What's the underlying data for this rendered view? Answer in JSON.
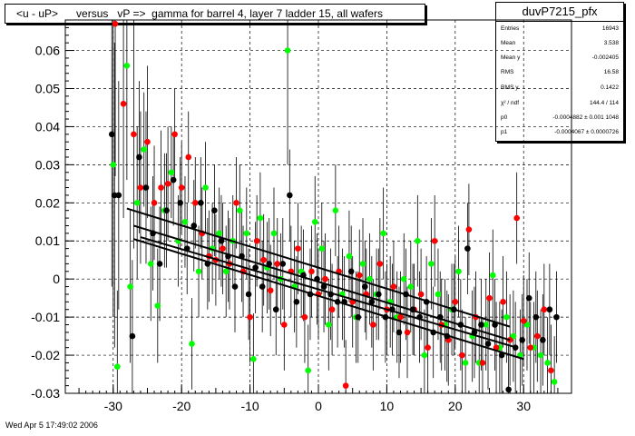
{
  "title": "<u - uP>      versus   vP =>  gamma for barrel 4, layer 7 ladder 15, all wafers",
  "timestamp": "Wed Apr  5 17:49:02 2006",
  "stats": {
    "name": "duvP7215_pfx",
    "rows": [
      {
        "label": "Entries",
        "value": "16943"
      },
      {
        "label": "Mean",
        "value": "3.538"
      },
      {
        "label": "Mean y",
        "value": "-0.002405"
      },
      {
        "label": "RMS",
        "value": "16.58"
      },
      {
        "label": "RMS y",
        "value": "0.1422"
      },
      {
        "label": "χ² / ndf",
        "value": "144.4 / 114"
      },
      {
        "label": "p0",
        "value": "-0.0004882  ± 0.001 1048"
      },
      {
        "label": "p1",
        "value": "-0.0004067  ± 0.0000726"
      }
    ]
  },
  "chart_data": {
    "type": "scatter",
    "xlim": [
      -37,
      37
    ],
    "ylim": [
      -0.03,
      0.068
    ],
    "xticks": [
      -30,
      -20,
      -10,
      0,
      10,
      20,
      30
    ],
    "yticks": [
      -0.03,
      -0.02,
      -0.01,
      0,
      0.01,
      0.02,
      0.03,
      0.04,
      0.05,
      0.06
    ],
    "ytick_labels": [
      "-0.03",
      "-0.02",
      "-0.01",
      "0",
      "0.01",
      "0.02",
      "0.03",
      "0.04",
      "0.05",
      "0.06"
    ],
    "xtick_labels": [
      "-30",
      "-20",
      "-10",
      "0",
      "10",
      "20",
      "30"
    ],
    "grid": true,
    "colors": {
      "black": "#000000",
      "red": "#ff0000",
      "green": "#00ff00",
      "fit": "#000000"
    },
    "series": [
      {
        "color": "green",
        "points": [
          [
            -30,
            0.03,
            0.04
          ],
          [
            -29.4,
            -0.023,
            0.02
          ],
          [
            -28,
            0.056,
            0.03
          ],
          [
            -27.5,
            -0.002,
            0.02
          ],
          [
            -26.5,
            0.02,
            0.02
          ],
          [
            -25.5,
            0.034,
            0.015
          ],
          [
            -24.5,
            0.004,
            0.015
          ],
          [
            -23.5,
            -0.007,
            0.015
          ],
          [
            -22.5,
            0.018,
            0.015
          ],
          [
            -21.5,
            0.028,
            0.012
          ],
          [
            -20.5,
            0.01,
            0.012
          ],
          [
            -19.5,
            0.015,
            0.012
          ],
          [
            -18.5,
            -0.017,
            0.012
          ],
          [
            -17.5,
            0.002,
            0.012
          ],
          [
            -16.5,
            0.024,
            0.012
          ],
          [
            -15.5,
            0.008,
            0.012
          ],
          [
            -14.5,
            0.012,
            0.012
          ],
          [
            -13.5,
            0.002,
            0.012
          ],
          [
            -12.5,
            0.01,
            0.012
          ],
          [
            -11.5,
            0.018,
            0.012
          ],
          [
            -10.5,
            0.012,
            0.012
          ],
          [
            -9.5,
            -0.021,
            0.012
          ],
          [
            -8.5,
            0.016,
            0.012
          ],
          [
            -7.5,
            0.003,
            0.012
          ],
          [
            -6.5,
            0.012,
            0.012
          ],
          [
            -5.5,
            0.0,
            0.012
          ],
          [
            -4.5,
            0.06,
            0.03
          ],
          [
            -3.5,
            -0.002,
            0.012
          ],
          [
            -2.5,
            0.002,
            0.012
          ],
          [
            -1.5,
            -0.024,
            0.012
          ],
          [
            -0.5,
            0.015,
            0.012
          ],
          [
            0.5,
            0.008,
            0.012
          ],
          [
            1.5,
            -0.012,
            0.012
          ],
          [
            2.5,
            0.018,
            0.012
          ],
          [
            3.5,
            -0.004,
            0.012
          ],
          [
            4.5,
            0.006,
            0.012
          ],
          [
            5.5,
            -0.01,
            0.012
          ],
          [
            6.5,
            0.004,
            0.012
          ],
          [
            7.5,
            0.0,
            0.012
          ],
          [
            8.5,
            -0.004,
            0.012
          ],
          [
            9.5,
            0.012,
            0.012
          ],
          [
            10.5,
            -0.006,
            0.012
          ],
          [
            11.5,
            -0.01,
            0.012
          ],
          [
            12.5,
            0.0,
            0.012
          ],
          [
            13.5,
            -0.002,
            0.012
          ],
          [
            14.5,
            0.01,
            0.012
          ],
          [
            15.5,
            -0.02,
            0.012
          ],
          [
            16.5,
            0.004,
            0.012
          ],
          [
            17.5,
            -0.004,
            0.012
          ],
          [
            18.5,
            -0.012,
            0.012
          ],
          [
            19.5,
            -0.008,
            0.012
          ],
          [
            20.5,
            0.002,
            0.012
          ],
          [
            21.5,
            -0.022,
            0.012
          ],
          [
            22.5,
            -0.015,
            0.012
          ],
          [
            23.5,
            -0.022,
            0.012
          ],
          [
            24.5,
            -0.012,
            0.012
          ],
          [
            25.5,
            0.001,
            0.012
          ],
          [
            26.5,
            -0.018,
            0.012
          ],
          [
            27.5,
            -0.01,
            0.012
          ],
          [
            28.5,
            -0.015,
            0.012
          ],
          [
            29.5,
            -0.02,
            0.012
          ],
          [
            30.5,
            -0.012,
            0.012
          ],
          [
            31.5,
            -0.018,
            0.012
          ],
          [
            32.5,
            -0.02,
            0.012
          ],
          [
            33.5,
            -0.022,
            0.012
          ],
          [
            34.5,
            -0.027,
            0.012
          ]
        ]
      },
      {
        "color": "red",
        "points": [
          [
            -29.7,
            0.067,
            0.04
          ],
          [
            -28.5,
            0.046,
            0.03
          ],
          [
            -27,
            0.038,
            0.03
          ],
          [
            -26,
            0.024,
            0.02
          ],
          [
            -25,
            0.036,
            0.02
          ],
          [
            -24,
            0.02,
            0.015
          ],
          [
            -23,
            0.024,
            0.015
          ],
          [
            -22,
            0.025,
            0.015
          ],
          [
            -21,
            0.038,
            0.012
          ],
          [
            -20,
            0.024,
            0.012
          ],
          [
            -19,
            0.032,
            0.012
          ],
          [
            -18,
            0.02,
            0.012
          ],
          [
            -17,
            0.012,
            0.012
          ],
          [
            -16,
            0.006,
            0.012
          ],
          [
            -15,
            0.005,
            0.012
          ],
          [
            -14,
            0.008,
            0.012
          ],
          [
            -13,
            0.004,
            0.012
          ],
          [
            -12,
            0.02,
            0.012
          ],
          [
            -11,
            0.002,
            0.012
          ],
          [
            -10,
            -0.01,
            0.012
          ],
          [
            -9,
            0.01,
            0.012
          ],
          [
            -8,
            0.005,
            0.012
          ],
          [
            -7,
            -0.003,
            0.012
          ],
          [
            -6,
            0.004,
            0.012
          ],
          [
            -5,
            -0.012,
            0.012
          ],
          [
            -4,
            0.002,
            0.012
          ],
          [
            -3,
            0.008,
            0.012
          ],
          [
            -2,
            -0.01,
            0.012
          ],
          [
            -1,
            0.002,
            0.012
          ],
          [
            0,
            -0.004,
            0.012
          ],
          [
            1,
            0.0,
            0.012
          ],
          [
            2,
            -0.008,
            0.012
          ],
          [
            3,
            0.002,
            0.012
          ],
          [
            4,
            -0.028,
            0.012
          ],
          [
            5,
            -0.006,
            0.012
          ],
          [
            6,
            0.001,
            0.012
          ],
          [
            7,
            -0.004,
            0.012
          ],
          [
            8,
            -0.012,
            0.012
          ],
          [
            9,
            0.004,
            0.012
          ],
          [
            10,
            -0.008,
            0.012
          ],
          [
            11,
            -0.002,
            0.012
          ],
          [
            12,
            -0.01,
            0.012
          ],
          [
            13,
            -0.014,
            0.012
          ],
          [
            14,
            -0.008,
            0.012
          ],
          [
            15,
            -0.004,
            0.012
          ],
          [
            16,
            -0.018,
            0.012
          ],
          [
            17,
            0.01,
            0.012
          ],
          [
            18,
            -0.012,
            0.012
          ],
          [
            19,
            -0.016,
            0.012
          ],
          [
            20,
            -0.006,
            0.012
          ],
          [
            21,
            -0.02,
            0.012
          ],
          [
            22,
            0.013,
            0.012
          ],
          [
            23,
            -0.01,
            0.012
          ],
          [
            24,
            -0.022,
            0.012
          ],
          [
            25,
            -0.005,
            0.012
          ],
          [
            26,
            -0.018,
            0.012
          ],
          [
            27,
            -0.006,
            0.012
          ],
          [
            28,
            -0.016,
            0.012
          ],
          [
            29,
            0.016,
            0.012
          ],
          [
            30,
            -0.011,
            0.012
          ],
          [
            31,
            -0.018,
            0.012
          ],
          [
            32,
            -0.015,
            0.012
          ],
          [
            33,
            -0.008,
            0.012
          ],
          [
            34,
            -0.024,
            0.012
          ]
        ]
      },
      {
        "color": "black",
        "points": [
          [
            -30.2,
            0.038,
            0.04
          ],
          [
            -29.8,
            0.022,
            0.04
          ],
          [
            -29.2,
            0.022,
            0.03
          ],
          [
            -27.2,
            -0.015,
            0.02
          ],
          [
            -26.2,
            0.032,
            0.02
          ],
          [
            -25.2,
            0.024,
            0.02
          ],
          [
            -24.2,
            0.012,
            0.015
          ],
          [
            -23.2,
            0.004,
            0.015
          ],
          [
            -22.2,
            0.018,
            0.015
          ],
          [
            -21.2,
            0.026,
            0.012
          ],
          [
            -20.2,
            0.02,
            0.012
          ],
          [
            -19.2,
            0.008,
            0.012
          ],
          [
            -18.2,
            0.014,
            0.012
          ],
          [
            -17.2,
            0.02,
            0.012
          ],
          [
            -16.2,
            0.004,
            0.012
          ],
          [
            -15.2,
            0.018,
            0.012
          ],
          [
            -14.2,
            0.01,
            0.012
          ],
          [
            -13.2,
            0.006,
            0.012
          ],
          [
            -12.2,
            -0.002,
            0.012
          ],
          [
            -11.2,
            0.006,
            0.012
          ],
          [
            -10.2,
            -0.004,
            0.012
          ],
          [
            -9.2,
            0.003,
            0.012
          ],
          [
            -8.2,
            -0.002,
            0.012
          ],
          [
            -7.2,
            0.004,
            0.012
          ],
          [
            -6.2,
            -0.008,
            0.012
          ],
          [
            -5.2,
            0.004,
            0.012
          ],
          [
            -4.2,
            0.022,
            0.012
          ],
          [
            -3.2,
            -0.006,
            0.012
          ],
          [
            -2.2,
            0.001,
            0.012
          ],
          [
            -1.2,
            -0.004,
            0.012
          ],
          [
            -0.2,
            0.0,
            0.012
          ],
          [
            0.8,
            -0.002,
            0.012
          ],
          [
            1.8,
            -0.004,
            0.012
          ],
          [
            2.8,
            -0.006,
            0.012
          ],
          [
            3.8,
            -0.006,
            0.012
          ],
          [
            4.8,
            0.002,
            0.012
          ],
          [
            5.8,
            -0.01,
            0.012
          ],
          [
            6.8,
            -0.002,
            0.012
          ],
          [
            7.8,
            -0.006,
            0.012
          ],
          [
            8.8,
            -0.004,
            0.012
          ],
          [
            9.8,
            -0.01,
            0.012
          ],
          [
            10.8,
            -0.008,
            0.012
          ],
          [
            11.8,
            -0.014,
            0.012
          ],
          [
            12.8,
            -0.004,
            0.012
          ],
          [
            13.8,
            -0.008,
            0.012
          ],
          [
            14.8,
            -0.01,
            0.012
          ],
          [
            15.8,
            -0.006,
            0.012
          ],
          [
            16.8,
            -0.014,
            0.012
          ],
          [
            17.8,
            -0.01,
            0.012
          ],
          [
            18.8,
            -0.015,
            0.012
          ],
          [
            19.8,
            -0.008,
            0.012
          ],
          [
            20.8,
            -0.012,
            0.012
          ],
          [
            21.8,
            0.008,
            0.012
          ],
          [
            22.8,
            -0.014,
            0.012
          ],
          [
            23.8,
            -0.012,
            0.012
          ],
          [
            24.8,
            -0.017,
            0.012
          ],
          [
            25.8,
            -0.012,
            0.012
          ],
          [
            26.8,
            -0.02,
            0.012
          ],
          [
            27.8,
            -0.029,
            0.012
          ],
          [
            28.8,
            -0.018,
            0.012
          ],
          [
            29.8,
            -0.016,
            0.012
          ],
          [
            30.8,
            -0.005,
            0.012
          ],
          [
            31.8,
            -0.01,
            0.012
          ],
          [
            32.8,
            -0.016,
            0.012
          ],
          [
            33.8,
            -0.008,
            0.012
          ],
          [
            34.8,
            -0.01,
            0.012
          ]
        ]
      }
    ],
    "fit_lines": [
      [
        [
          -28,
          0.0185
        ],
        [
          28,
          -0.0125
        ]
      ],
      [
        [
          -27,
          0.014
        ],
        [
          28,
          -0.016
        ]
      ],
      [
        [
          -26,
          0.011
        ],
        [
          29,
          -0.018
        ]
      ],
      [
        [
          -27,
          0.0105
        ],
        [
          30,
          -0.021
        ]
      ]
    ]
  }
}
